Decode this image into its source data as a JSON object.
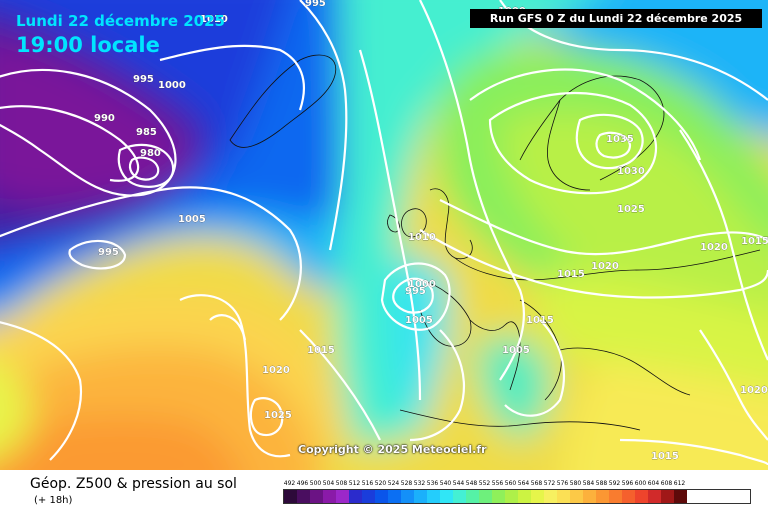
{
  "header": {
    "date": "Lundi 22 décembre 2025",
    "local_time": "19:00 locale",
    "run": "Run GFS 0 Z du Lundi 22 décembre 2025"
  },
  "copyright": "Copyright © 2025 Meteociel.fr",
  "footer": {
    "title": "Géop. Z500 & pression au sol",
    "lead_time": "(+ 18h)"
  },
  "isobar_labels": [
    "995",
    "1010",
    "995",
    "1000",
    "990",
    "985",
    "980",
    "1005",
    "995",
    "1000",
    "1035",
    "1030",
    "1025",
    "1010",
    "1000",
    "995",
    "1005",
    "1015",
    "1020",
    "1020",
    "1015",
    "1015",
    "1005",
    "1015",
    "1020",
    "1025",
    "1020",
    "1015"
  ],
  "legend": {
    "values": [
      "492",
      "496",
      "500",
      "504",
      "508",
      "512",
      "516",
      "520",
      "524",
      "528",
      "532",
      "536",
      "540",
      "544",
      "548",
      "552",
      "556",
      "560",
      "564",
      "568",
      "572",
      "576",
      "580",
      "584",
      "588",
      "592",
      "596",
      "600",
      "604",
      "608",
      "612"
    ],
    "colors": [
      "#2d0a3a",
      "#4a0e60",
      "#6b1384",
      "#8a1aa8",
      "#9c28c9",
      "#2b2bcc",
      "#1a3ddb",
      "#0a55ea",
      "#0b6ff3",
      "#1490f8",
      "#1bb0fb",
      "#24cdfc",
      "#30e6f6",
      "#44f0d4",
      "#55f2a6",
      "#6ef07c",
      "#8ff05a",
      "#aef049",
      "#ccf342",
      "#e6f54a",
      "#f7f060",
      "#fbe055",
      "#fcc947",
      "#fcb13c",
      "#fb9733",
      "#f97c2f",
      "#f5602d",
      "#ee442c",
      "#d12a2a",
      "#a01818",
      "#5e0a0a"
    ]
  }
}
